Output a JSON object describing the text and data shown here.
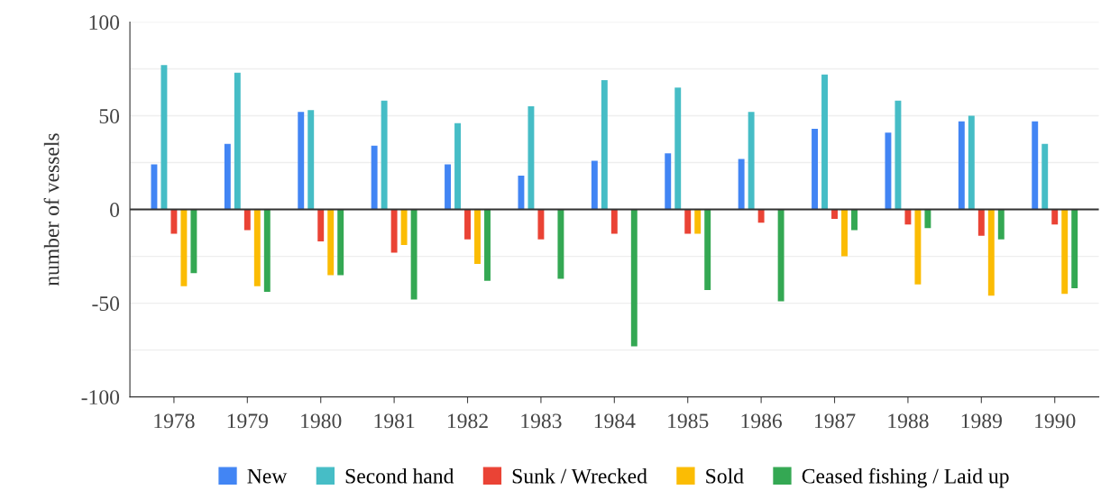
{
  "chart_data": {
    "type": "bar",
    "ylabel": "number of vessels",
    "categories": [
      "1978",
      "1979",
      "1980",
      "1981",
      "1982",
      "1983",
      "1984",
      "1985",
      "1986",
      "1987",
      "1988",
      "1989",
      "1990"
    ],
    "series": [
      {
        "name": "New",
        "color": "#4285f4",
        "values": [
          24,
          35,
          52,
          34,
          24,
          18,
          26,
          30,
          27,
          43,
          41,
          47,
          47
        ]
      },
      {
        "name": "Second hand",
        "color": "#46bdc6",
        "values": [
          77,
          73,
          53,
          58,
          46,
          55,
          69,
          65,
          52,
          72,
          58,
          50,
          35
        ]
      },
      {
        "name": "Sunk / Wrecked",
        "color": "#ea4335",
        "values": [
          -13,
          -11,
          -17,
          -23,
          -16,
          -16,
          -13,
          -13,
          -7,
          -5,
          -8,
          -14,
          -8
        ]
      },
      {
        "name": "Sold",
        "color": "#fbbc04",
        "values": [
          -41,
          -41,
          -35,
          -19,
          -29,
          null,
          null,
          -13,
          null,
          -25,
          -40,
          -46,
          -45
        ]
      },
      {
        "name": "Ceased fishing / Laid up",
        "color": "#34a853",
        "values": [
          -34,
          -44,
          -35,
          -48,
          -38,
          -37,
          -73,
          -43,
          -49,
          -11,
          -10,
          -16,
          -42
        ]
      }
    ],
    "ylim": [
      -100,
      100
    ],
    "yticks": [
      -100,
      {
        "value": -75,
        "label": null
      },
      -50,
      {
        "value": -25,
        "label": null
      },
      0,
      {
        "value": 25,
        "label": null
      },
      50,
      {
        "value": 75,
        "label": null
      },
      100
    ],
    "ref_lines": [
      {
        "axis": "y",
        "value": 0,
        "color": "#333333"
      }
    ],
    "grid": "y",
    "legend": "bottom"
  }
}
